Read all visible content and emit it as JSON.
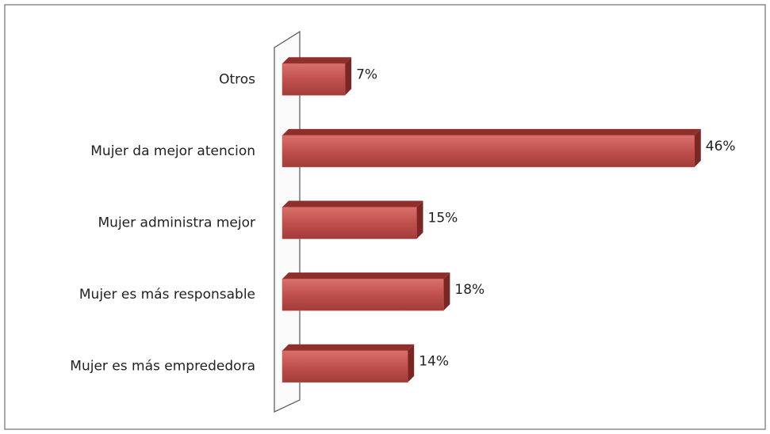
{
  "chart_data": {
    "type": "bar",
    "orientation": "horizontal",
    "categories": [
      "Otros",
      "Mujer da mejor atencion",
      "Mujer administra mejor",
      "Mujer es más responsable",
      "Mujer es más emprededora"
    ],
    "values": [
      7,
      46,
      15,
      18,
      14
    ],
    "value_labels": [
      "7%",
      "46%",
      "15%",
      "18%",
      "14%"
    ],
    "color": "#c0504d"
  }
}
